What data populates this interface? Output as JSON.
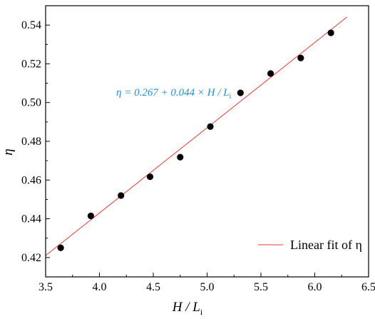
{
  "chart_data": {
    "type": "scatter",
    "xlabel": "H / L",
    "xlabel_sub": "i",
    "ylabel": "η",
    "xlim": [
      3.5,
      6.5
    ],
    "ylim": [
      0.41,
      0.55
    ],
    "xticks": [
      "3.5",
      "4.0",
      "4.5",
      "5.0",
      "5.5",
      "6.0",
      "6.5"
    ],
    "yticks": [
      "0.42",
      "0.44",
      "0.46",
      "0.48",
      "0.50",
      "0.52",
      "0.54"
    ],
    "grid": false,
    "legend_position": "bottom-right",
    "series": [
      {
        "type": "scatter",
        "color": "#000000",
        "x": [
          3.64,
          3.92,
          4.2,
          4.47,
          4.75,
          5.03,
          5.31,
          5.59,
          5.87,
          6.15
        ],
        "y": [
          0.425,
          0.4415,
          0.452,
          0.4617,
          0.4718,
          0.4876,
          0.505,
          0.515,
          0.523,
          0.536
        ]
      },
      {
        "type": "line",
        "name": "Linear fit of η",
        "color": "#e8392f",
        "intercept": 0.267,
        "slope": 0.044,
        "x_range": [
          3.5,
          6.3
        ]
      }
    ],
    "annotation": "η = 0.267 + 0.044 × H / L",
    "annotation_sub": "i",
    "legend_label": "Linear fit of η"
  }
}
